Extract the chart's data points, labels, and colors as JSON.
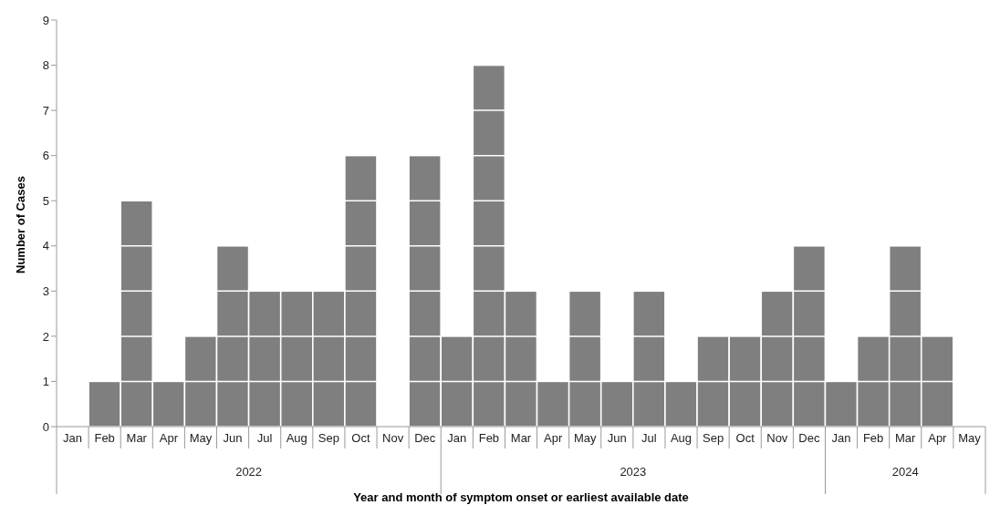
{
  "chart_data": {
    "type": "bar",
    "xlabel": "Year and month of symptom onset or earliest available date",
    "ylabel": "Number of Cases",
    "categories": [
      "Jan",
      "Feb",
      "Mar",
      "Apr",
      "May",
      "Jun",
      "Jul",
      "Aug",
      "Sep",
      "Oct",
      "Nov",
      "Dec",
      "Jan",
      "Feb",
      "Mar",
      "Apr",
      "May",
      "Jun",
      "Jul",
      "Aug",
      "Sep",
      "Oct",
      "Nov",
      "Dec",
      "Jan",
      "Feb",
      "Mar",
      "Apr",
      "May"
    ],
    "values": [
      0,
      1,
      5,
      1,
      2,
      4,
      3,
      3,
      3,
      6,
      0,
      6,
      2,
      8,
      3,
      1,
      3,
      1,
      3,
      1,
      2,
      2,
      3,
      4,
      1,
      2,
      4,
      2,
      0
    ],
    "color": "#7f7f7f",
    "ylim": [
      0,
      9
    ],
    "yticks": [
      0,
      1,
      2,
      3,
      4,
      5,
      6,
      7,
      8,
      9
    ],
    "annotations": [
      "2022",
      "2023",
      "2024"
    ]
  }
}
